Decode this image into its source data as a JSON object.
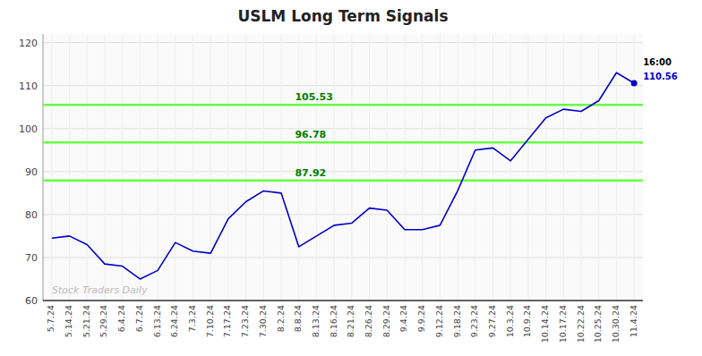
{
  "chart_data": {
    "type": "line",
    "title": "USLM Long Term Signals",
    "categories": [
      "5.7.24",
      "5.14.24",
      "5.21.24",
      "5.29.24",
      "6.4.24",
      "6.7.24",
      "6.13.24",
      "6.24.24",
      "7.3.24",
      "7.10.24",
      "7.17.24",
      "7.23.24",
      "7.30.24",
      "8.2.24",
      "8.8.24",
      "8.13.24",
      "8.16.24",
      "8.21.24",
      "8.26.24",
      "8.29.24",
      "9.4.24",
      "9.9.24",
      "9.12.24",
      "9.18.24",
      "9.23.24",
      "9.27.24",
      "10.3.24",
      "10.9.24",
      "10.14.24",
      "10.17.24",
      "10.22.24",
      "10.25.24",
      "10.30.24",
      "11.4.24"
    ],
    "values": [
      74.5,
      75.0,
      73.0,
      68.5,
      68.0,
      65.0,
      67.0,
      73.5,
      71.5,
      71.0,
      79.0,
      83.0,
      85.5,
      85.0,
      72.5,
      75.0,
      77.5,
      78.0,
      81.5,
      81.0,
      76.5,
      76.5,
      77.5,
      85.5,
      95.0,
      95.5,
      92.5,
      97.5,
      102.5,
      104.5,
      104.0,
      106.5,
      113.0,
      110.56
    ],
    "color": "#0000cc",
    "marker": "last",
    "ylim": [
      60,
      122
    ],
    "yticks": [
      60,
      70,
      80,
      90,
      100,
      110,
      120
    ],
    "grid": true,
    "annotations": [
      {
        "type": "hline",
        "value": 105.53,
        "label": "105.53",
        "color": "#66ff44",
        "label_color": "#008000"
      },
      {
        "type": "hline",
        "value": 96.78,
        "label": "96.78",
        "color": "#66ff44",
        "label_color": "#008000"
      },
      {
        "type": "hline",
        "value": 87.92,
        "label": "87.92",
        "color": "#66ff44",
        "label_color": "#008000"
      },
      {
        "type": "point_label",
        "text": "16:00",
        "color": "#000000"
      },
      {
        "type": "point_label",
        "text": "110.56",
        "value": 110.56,
        "color": "#0000cc"
      },
      {
        "type": "watermark",
        "text": "Stock Traders Daily",
        "color": "#bbbbbb"
      }
    ]
  }
}
